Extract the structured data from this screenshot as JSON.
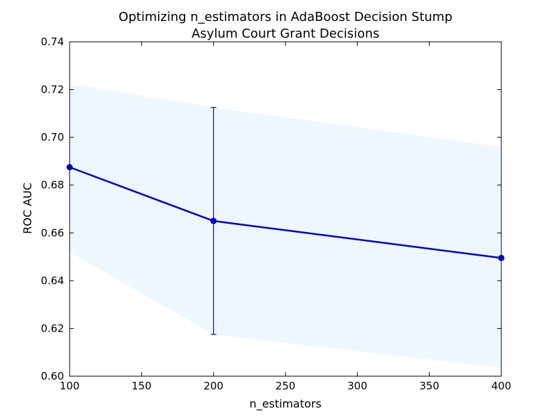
{
  "chart_data": {
    "type": "line",
    "title": "Optimizing n_estimators in AdaBoost Decision Stump",
    "subtitle": "Asylum Court Grant Decisions",
    "xlabel": "n_estimators",
    "ylabel": "ROC AUC",
    "xlim": [
      100,
      400
    ],
    "ylim": [
      0.6,
      0.74
    ],
    "xticks": [
      "100",
      "150",
      "200",
      "250",
      "300",
      "350",
      "400"
    ],
    "yticks": [
      "0.60",
      "0.62",
      "0.64",
      "0.66",
      "0.68",
      "0.70",
      "0.72",
      "0.74"
    ],
    "grid": false,
    "x": [
      100,
      200,
      400
    ],
    "y": [
      0.6875,
      0.665,
      0.6495
    ],
    "band_upper": [
      0.7225,
      0.7125,
      0.696
    ],
    "band_lower": [
      0.652,
      0.6175,
      0.6035
    ],
    "error_bar": {
      "x": 200,
      "upper": 0.7125,
      "lower": 0.6175
    },
    "colors": {
      "line": "#0000cc",
      "band": "#eef7ff"
    }
  }
}
